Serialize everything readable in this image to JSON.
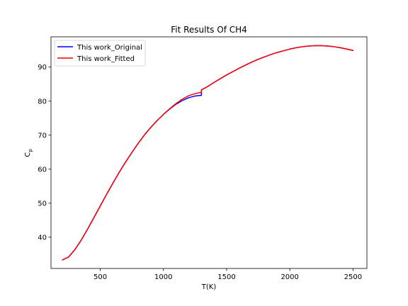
{
  "chart_data": {
    "type": "line",
    "title": "Fit Results Of CH4",
    "xlabel": "T(K)",
    "ylabel": "C",
    "ylabel_sub": "p",
    "xlim": [
      110,
      2610
    ],
    "ylim": [
      30.8,
      98.9
    ],
    "xticks": [
      500,
      1000,
      1500,
      2000,
      2500
    ],
    "yticks": [
      40,
      50,
      60,
      70,
      80,
      90
    ],
    "legend_position": "upper-left",
    "grid": false,
    "series": [
      {
        "name": "This work_Original",
        "color": "#0000ff",
        "x": [
          200,
          250,
          300,
          350,
          400,
          450,
          500,
          550,
          600,
          650,
          700,
          750,
          800,
          850,
          900,
          950,
          1000,
          1000,
          1050,
          1100,
          1150,
          1200,
          1250,
          1300,
          1300,
          1350,
          1400,
          1450,
          1500,
          1550,
          1600,
          1650,
          1700,
          1750,
          1800,
          1850,
          1900,
          1950,
          2000,
          2050,
          2100,
          2150,
          2200,
          2250,
          2300,
          2350,
          2400,
          2450,
          2500
        ],
        "y": [
          33.3,
          34.2,
          36.4,
          39.2,
          42.4,
          45.8,
          49.2,
          52.6,
          55.9,
          59.1,
          62.1,
          64.9,
          67.6,
          70.1,
          72.3,
          74.3,
          76.1,
          76.1,
          77.7,
          79.1,
          80.2,
          81.0,
          81.5,
          81.7,
          83.3,
          84.3,
          85.5,
          86.6,
          87.7,
          88.7,
          89.7,
          90.6,
          91.5,
          92.3,
          93.0,
          93.7,
          94.3,
          94.8,
          95.3,
          95.7,
          96.0,
          96.2,
          96.3,
          96.3,
          96.2,
          96.0,
          95.7,
          95.3,
          94.9
        ]
      },
      {
        "name": "This work_Fitted",
        "color": "#ff0000",
        "x": [
          200,
          250,
          300,
          350,
          400,
          450,
          500,
          550,
          600,
          650,
          700,
          750,
          800,
          850,
          900,
          950,
          1000,
          1050,
          1100,
          1150,
          1200,
          1250,
          1300,
          1300,
          1350,
          1400,
          1450,
          1500,
          1550,
          1600,
          1650,
          1700,
          1750,
          1800,
          1850,
          1900,
          1950,
          2000,
          2050,
          2100,
          2150,
          2200,
          2250,
          2300,
          2350,
          2400,
          2450,
          2500
        ],
        "y": [
          33.3,
          34.2,
          36.4,
          39.2,
          42.4,
          45.8,
          49.2,
          52.6,
          55.9,
          59.1,
          62.1,
          64.9,
          67.6,
          70.1,
          72.3,
          74.3,
          76.1,
          77.8,
          79.3,
          80.6,
          81.6,
          82.2,
          82.6,
          83.3,
          84.3,
          85.5,
          86.6,
          87.7,
          88.7,
          89.7,
          90.6,
          91.5,
          92.3,
          93.0,
          93.7,
          94.3,
          94.8,
          95.3,
          95.7,
          96.0,
          96.2,
          96.3,
          96.3,
          96.2,
          96.0,
          95.7,
          95.3,
          94.9
        ]
      }
    ]
  }
}
